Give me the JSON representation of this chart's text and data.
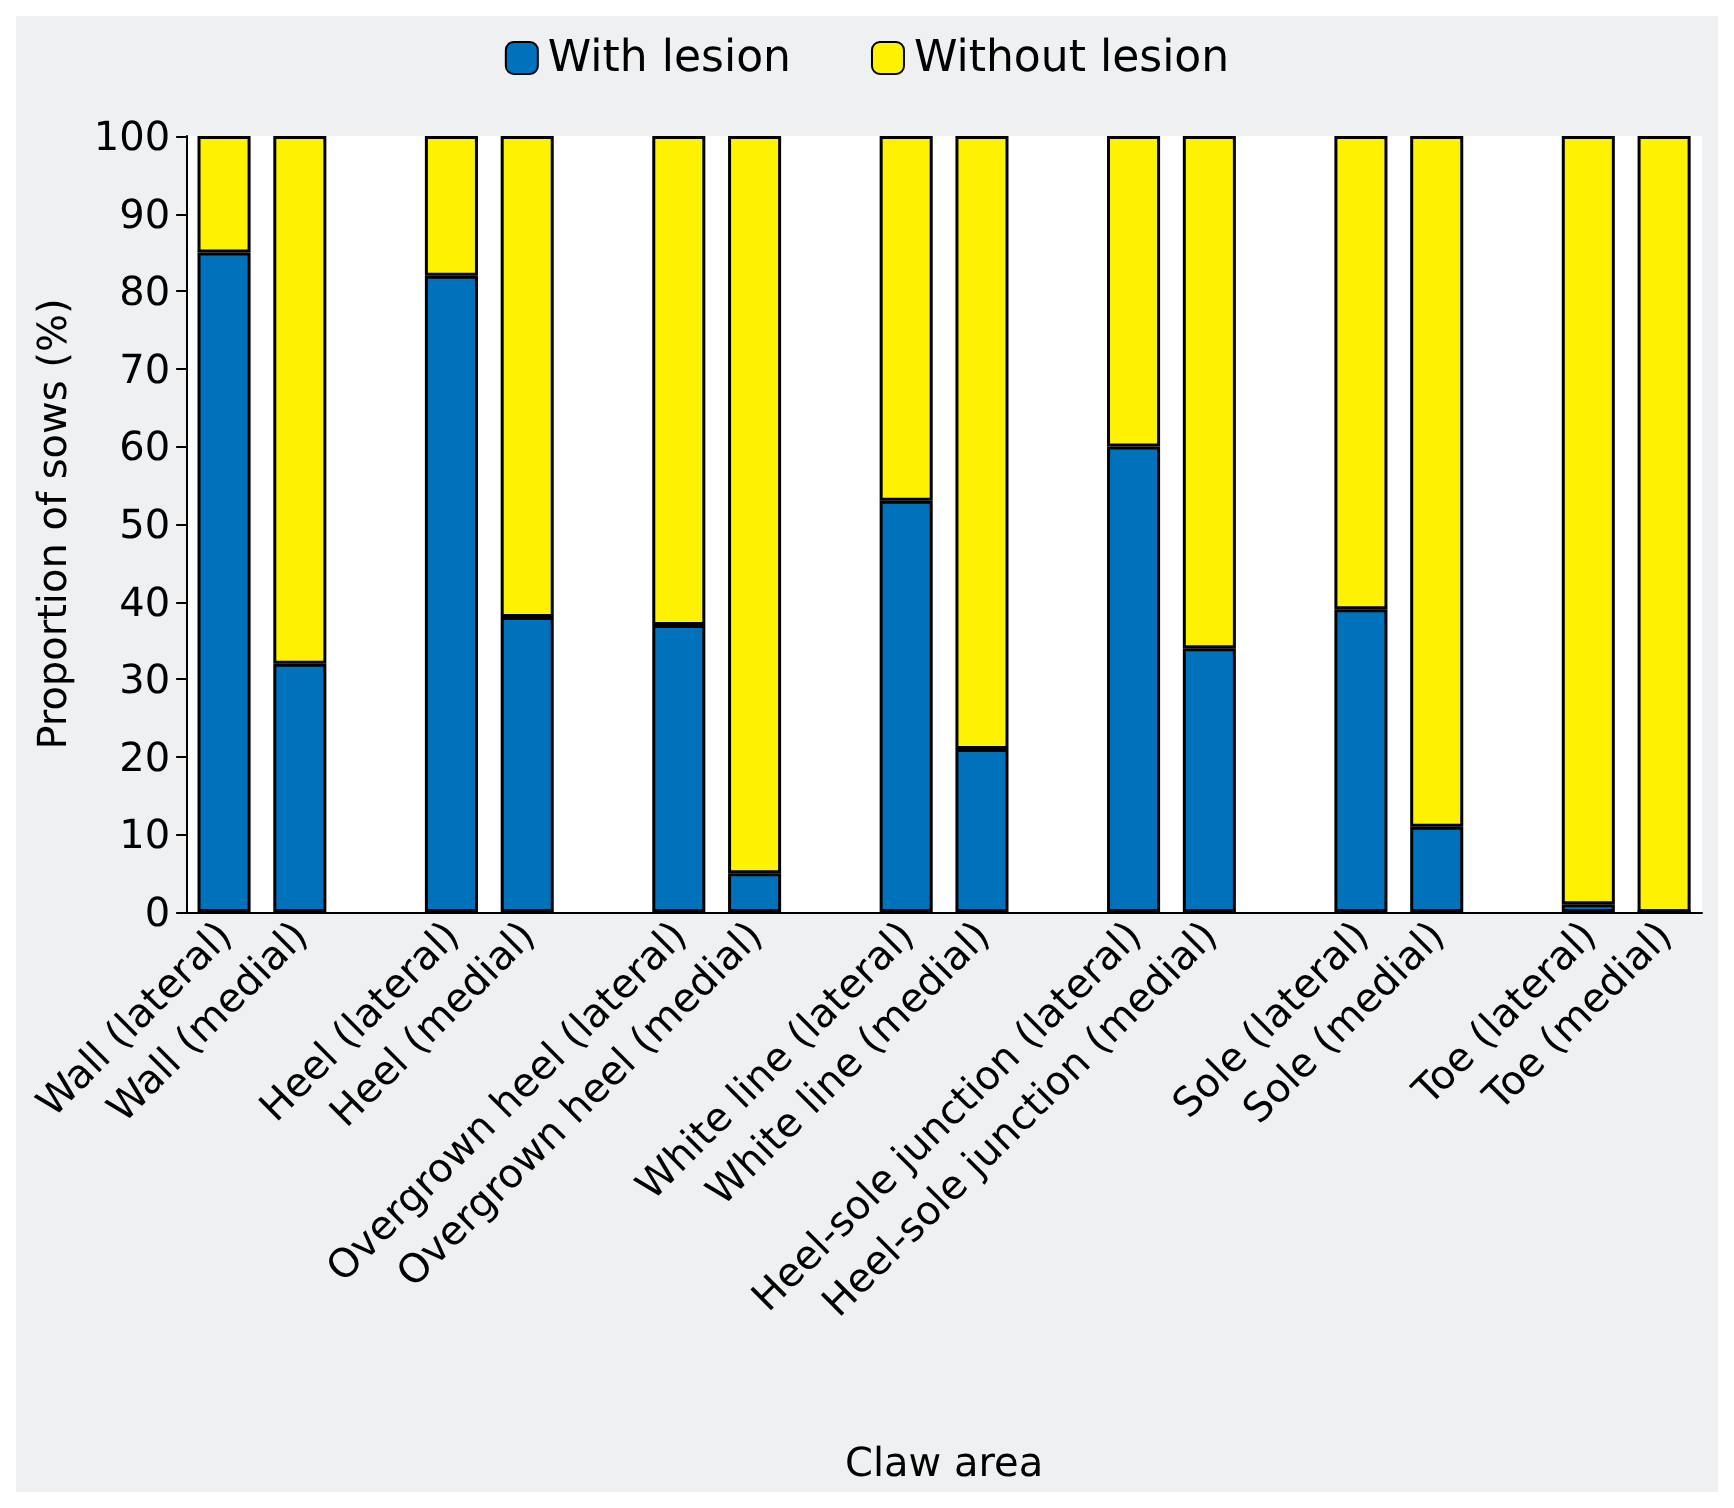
{
  "chart_data": {
    "type": "bar",
    "stacked": true,
    "xlabel": "Claw area",
    "ylabel": "Proportion of sows (%)",
    "categories": [
      "Wall (lateral)",
      "Wall (medial)",
      null,
      "Heel (lateral)",
      "Heel (medial)",
      null,
      "Overgrown heel (lateral)",
      "Overgrown heel (medial)",
      null,
      "White line (lateral)",
      "White line (medial)",
      null,
      "Heel-sole junction (lateral)",
      "Heel-sole junction (medial)",
      null,
      "Sole (lateral)",
      "Sole (medial)",
      null,
      "Toe (lateral)",
      "Toe (medial)"
    ],
    "series": [
      {
        "name": "With lesion",
        "color": "#0072bc",
        "values": [
          85,
          32,
          null,
          82,
          38,
          null,
          37,
          5,
          null,
          53,
          21,
          null,
          60,
          34,
          null,
          39,
          11,
          null,
          1,
          0
        ]
      },
      {
        "name": "Without lesion",
        "color": "#fff200",
        "values": [
          15,
          68,
          null,
          18,
          62,
          null,
          63,
          95,
          null,
          47,
          79,
          null,
          40,
          66,
          null,
          61,
          89,
          null,
          99,
          100
        ]
      }
    ],
    "ylim": [
      0,
      100
    ],
    "yticks": [
      0,
      10,
      20,
      30,
      40,
      50,
      60,
      70,
      80,
      90,
      100
    ],
    "grid": false,
    "legend": "top"
  }
}
